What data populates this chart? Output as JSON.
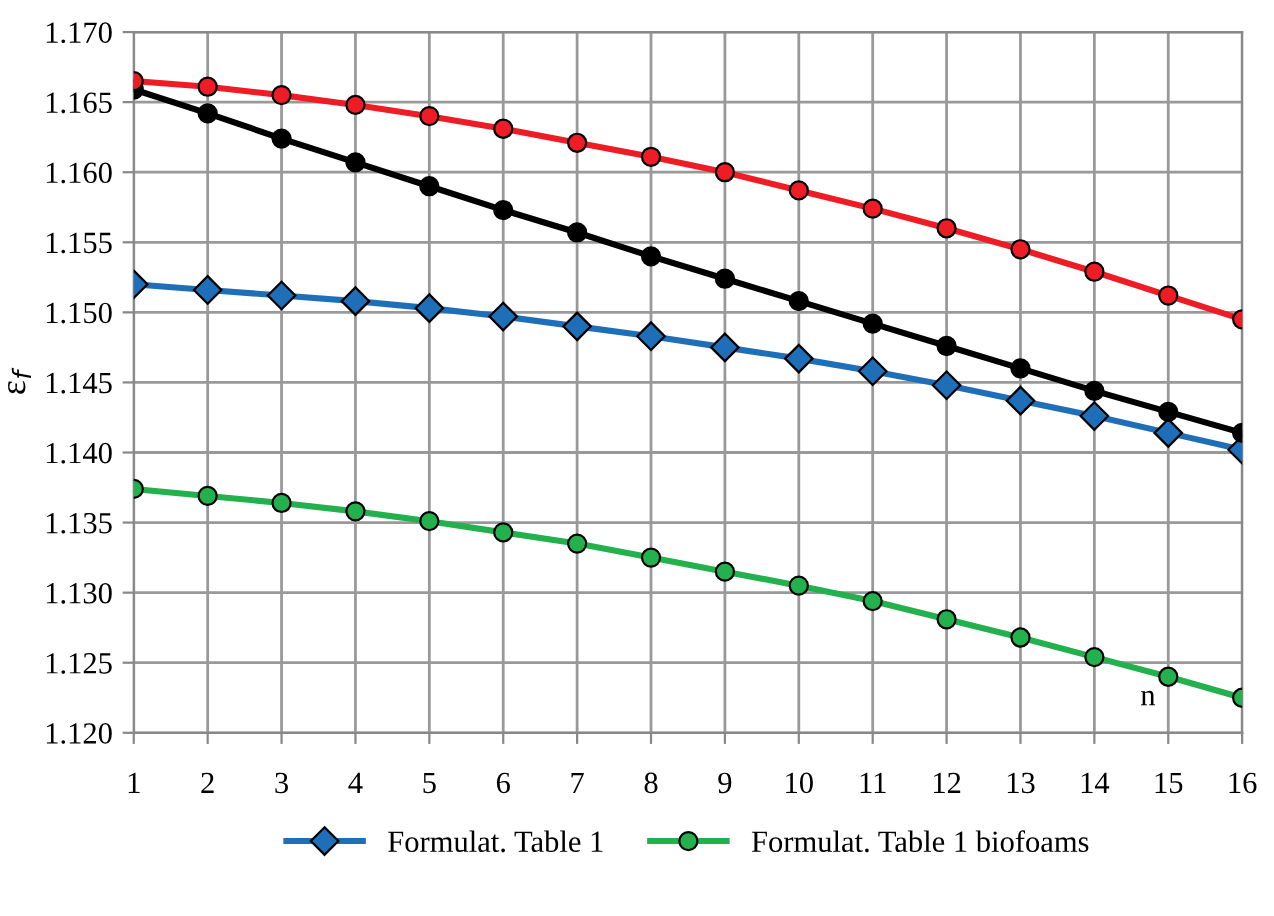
{
  "chart_data": {
    "type": "line",
    "xlabel": "n",
    "ylabel": "ε$_{f}$",
    "x": [
      1,
      2,
      3,
      4,
      5,
      6,
      7,
      8,
      9,
      10,
      11,
      12,
      13,
      14,
      15,
      16
    ],
    "xlim": [
      1,
      16
    ],
    "xticks": [
      1,
      2,
      3,
      4,
      5,
      6,
      7,
      8,
      9,
      10,
      11,
      12,
      13,
      14,
      15,
      16
    ],
    "ylim": [
      1.12,
      1.17
    ],
    "yticks": [
      {
        "value": 1.12,
        "label": "1.120"
      },
      {
        "value": 1.125,
        "label": "1.125"
      },
      {
        "value": 1.13,
        "label": "1.130"
      },
      {
        "value": 1.135,
        "label": "1.135"
      },
      {
        "value": 1.14,
        "label": "1.140"
      },
      {
        "value": 1.145,
        "label": "1.145"
      },
      {
        "value": 1.15,
        "label": "1.150"
      },
      {
        "value": 1.155,
        "label": "1.155"
      },
      {
        "value": 1.16,
        "label": "1.160"
      },
      {
        "value": 1.165,
        "label": "1.165"
      },
      {
        "value": 1.17,
        "label": "1.170"
      }
    ],
    "grid": true,
    "legend": "bottom",
    "line_style": "solid",
    "series": [
      {
        "name": "Formulat. Table 1",
        "color": "#1f6fb8",
        "marker": "diamond",
        "values": [
          1.152,
          1.1516,
          1.1512,
          1.1508,
          1.1503,
          1.1497,
          1.149,
          1.1483,
          1.1475,
          1.1467,
          1.1458,
          1.1448,
          1.1437,
          1.1426,
          1.1414,
          1.1402
        ]
      },
      {
        "color": "#000000",
        "marker": "circle",
        "values": [
          1.1659,
          1.1642,
          1.1624,
          1.1607,
          1.159,
          1.1573,
          1.1557,
          1.154,
          1.1524,
          1.1508,
          1.1492,
          1.1476,
          1.146,
          1.1444,
          1.1429,
          1.1414
        ]
      },
      {
        "color": "#ee1c24",
        "marker": "circle",
        "values": [
          1.1665,
          1.1661,
          1.1655,
          1.1648,
          1.164,
          1.1631,
          1.1621,
          1.1611,
          1.16,
          1.1587,
          1.1574,
          1.156,
          1.1545,
          1.1529,
          1.1512,
          1.1495
        ]
      },
      {
        "name": "Formulat. Table 1 biofoams",
        "color": "#22b14c",
        "marker": "circle",
        "values": [
          1.1374,
          1.1369,
          1.1364,
          1.1358,
          1.1351,
          1.1343,
          1.1335,
          1.1325,
          1.1315,
          1.1305,
          1.1294,
          1.1281,
          1.1268,
          1.1254,
          1.124,
          1.1225
        ]
      }
    ]
  }
}
